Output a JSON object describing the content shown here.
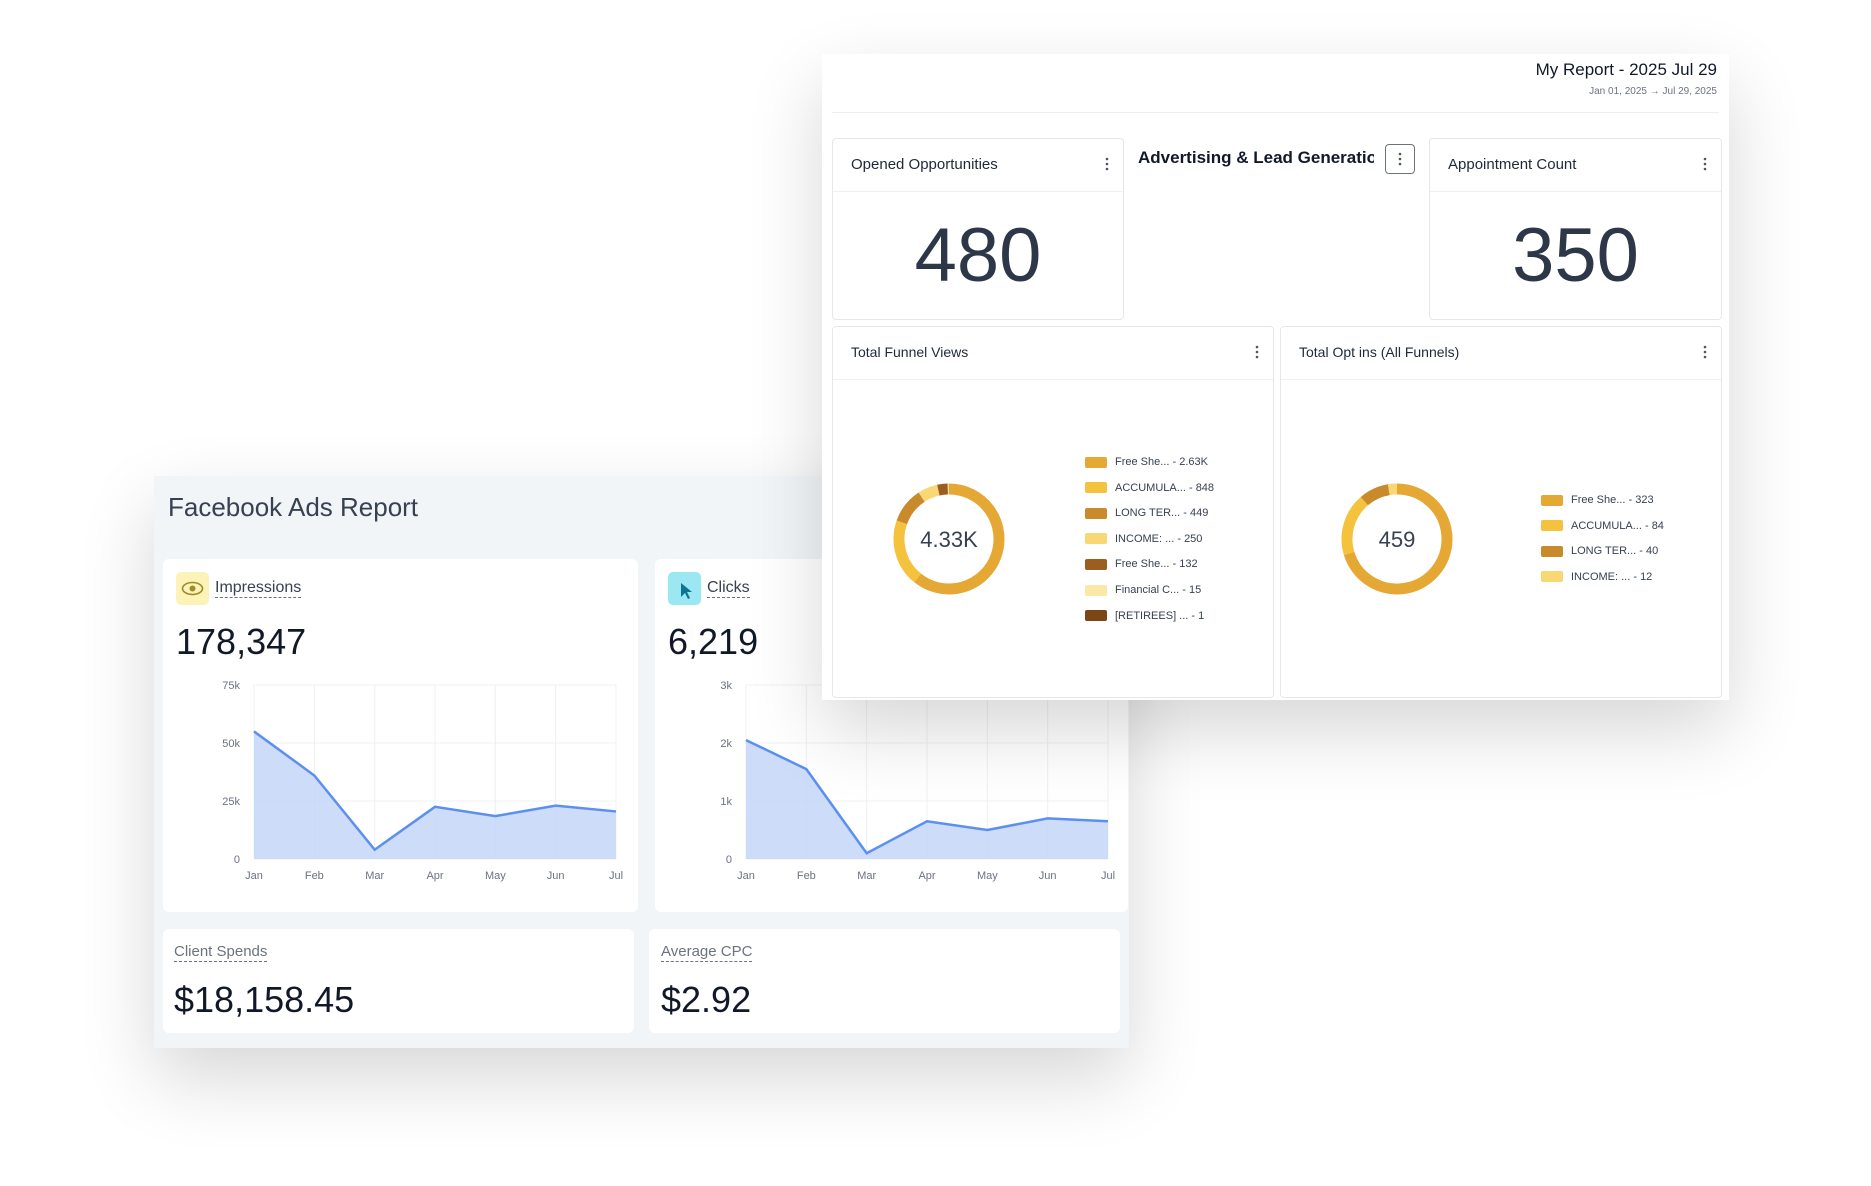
{
  "facebook_report": {
    "title": "Facebook Ads Report",
    "impressions": {
      "label": "Impressions",
      "value": "178,347",
      "chart": {
        "type": "line",
        "categories": [
          "Jan",
          "Feb",
          "Mar",
          "Apr",
          "May",
          "Jun",
          "Jul"
        ],
        "values": [
          55000,
          36000,
          4000,
          22500,
          18500,
          23000,
          20500
        ],
        "color": "#5b8ff0",
        "ylim": [
          0,
          75000
        ],
        "yticks": [
          0,
          {
            "value": 25000,
            "label": "25k"
          },
          {
            "value": 50000,
            "label": "50k"
          },
          {
            "value": 75000,
            "label": "75k"
          }
        ],
        "grid": true
      }
    },
    "clicks": {
      "label": "Clicks",
      "value": "6,219",
      "chart": {
        "type": "line",
        "categories": [
          "Jan",
          "Feb",
          "Mar",
          "Apr",
          "May",
          "Jun",
          "Jul"
        ],
        "values": [
          2050,
          1550,
          100,
          650,
          500,
          700,
          650
        ],
        "color": "#5b8ff0",
        "ylim": [
          0,
          3000
        ],
        "yticks": [
          0,
          {
            "value": 1000,
            "label": "1k"
          },
          {
            "value": 2000,
            "label": "2k"
          },
          {
            "value": 3000,
            "label": "3k"
          }
        ],
        "grid": true
      }
    },
    "client_spends": {
      "label": "Client Spends",
      "value": "$18,158.45"
    },
    "average_cpc": {
      "label": "Average CPC",
      "value": "$2.92"
    }
  },
  "my_report": {
    "title": "My Report - 2025 Jul 29",
    "date_range": "Jan 01, 2025 → Jul 29, 2025",
    "opened_opportunities": {
      "label": "Opened Opportunities",
      "value": "480"
    },
    "section_title": "Advertising & Lead Generation",
    "appointment_count": {
      "label": "Appointment Count",
      "value": "350"
    },
    "total_funnel_views": {
      "title": "Total Funnel Views",
      "center_label": "4.33K",
      "chart": {
        "type": "donut",
        "categories": [
          "Free She...",
          "ACCUMULA...",
          "LONG TER...",
          "INCOME: ...",
          "Free She...",
          "Financial C...",
          "[RETIREES] ..."
        ],
        "values": [
          2630,
          848,
          449,
          250,
          132,
          15,
          1
        ],
        "value_labels": [
          "2.63K",
          "848",
          "449",
          "250",
          "132",
          "15",
          "1"
        ],
        "colors": [
          "#e6a834",
          "#f5c23e",
          "#c98a2b",
          "#f8d774",
          "#9b5e1f",
          "#fce8a6",
          "#7a4616"
        ]
      }
    },
    "total_opt_ins": {
      "title": "Total Opt ins (All Funnels)",
      "center_label": "459",
      "chart": {
        "type": "donut",
        "categories": [
          "Free She...",
          "ACCUMULA...",
          "LONG TER...",
          "INCOME: ..."
        ],
        "values": [
          323,
          84,
          40,
          12
        ],
        "value_labels": [
          "323",
          "84",
          "40",
          "12"
        ],
        "colors": [
          "#e6a834",
          "#f5c23e",
          "#c98a2b",
          "#f8d774"
        ]
      }
    }
  }
}
